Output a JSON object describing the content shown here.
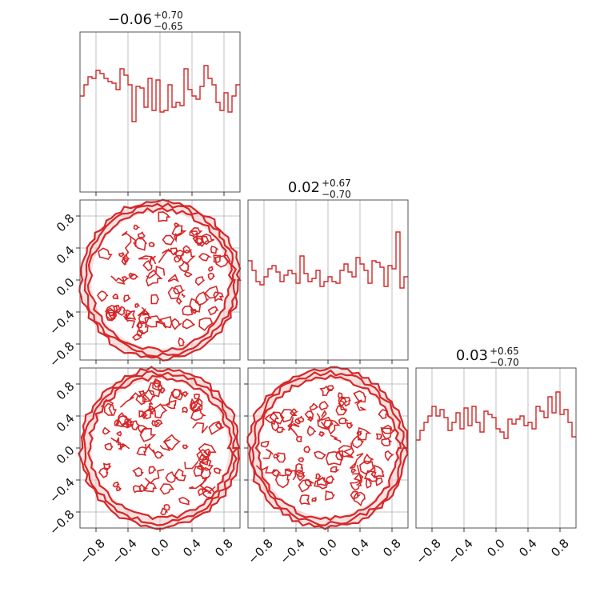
{
  "figure": {
    "type": "corner-plot",
    "color": "#d62728",
    "fill_color": "#f3c9c9"
  },
  "chart_data": {
    "type": "corner",
    "axis_range": [
      -1.0,
      1.0
    ],
    "ticks": [
      -0.8,
      -0.4,
      0.0,
      0.4,
      0.8
    ],
    "tick_labels": [
      "−0.8",
      "−0.4",
      "0.0",
      "0.4",
      "0.8"
    ],
    "grid": true,
    "params": [
      {
        "median": "−0.06",
        "plus": "+0.70",
        "minus": "−0.65"
      },
      {
        "median": "0.02",
        "plus": "+0.67",
        "minus": "−0.70"
      },
      {
        "median": "0.03",
        "plus": "+0.65",
        "minus": "−0.70"
      }
    ],
    "histograms": [
      {
        "bins": 40,
        "values": [
          0.6,
          0.67,
          0.72,
          0.71,
          0.76,
          0.74,
          0.71,
          0.69,
          0.68,
          0.64,
          0.77,
          0.73,
          0.67,
          0.44,
          0.66,
          0.65,
          0.53,
          0.71,
          0.51,
          0.7,
          0.5,
          0.51,
          0.67,
          0.53,
          0.56,
          0.54,
          0.77,
          0.64,
          0.6,
          0.58,
          0.66,
          0.79,
          0.71,
          0.67,
          0.56,
          0.51,
          0.62,
          0.5,
          0.6,
          0.67
        ]
      },
      {
        "bins": 40,
        "values": [
          0.62,
          0.56,
          0.49,
          0.47,
          0.52,
          0.57,
          0.59,
          0.55,
          0.49,
          0.53,
          0.56,
          0.54,
          0.48,
          0.65,
          0.54,
          0.49,
          0.51,
          0.56,
          0.46,
          0.49,
          0.52,
          0.49,
          0.48,
          0.56,
          0.6,
          0.55,
          0.52,
          0.64,
          0.6,
          0.56,
          0.48,
          0.62,
          0.61,
          0.58,
          0.46,
          0.59,
          0.57,
          0.8,
          0.45,
          0.52
        ]
      },
      {
        "bins": 40,
        "values": [
          0.55,
          0.61,
          0.66,
          0.7,
          0.76,
          0.7,
          0.74,
          0.69,
          0.61,
          0.66,
          0.72,
          0.62,
          0.75,
          0.64,
          0.76,
          0.66,
          0.6,
          0.73,
          0.71,
          0.69,
          0.62,
          0.6,
          0.56,
          0.68,
          0.65,
          0.68,
          0.7,
          0.64,
          0.66,
          0.62,
          0.76,
          0.73,
          0.69,
          0.82,
          0.72,
          0.85,
          0.71,
          0.74,
          0.66,
          0.57
        ]
      }
    ],
    "pairs": [
      {
        "row": 1,
        "col": 0,
        "seed": 11
      },
      {
        "row": 2,
        "col": 0,
        "seed": 23
      },
      {
        "row": 2,
        "col": 1,
        "seed": 37
      }
    ]
  }
}
